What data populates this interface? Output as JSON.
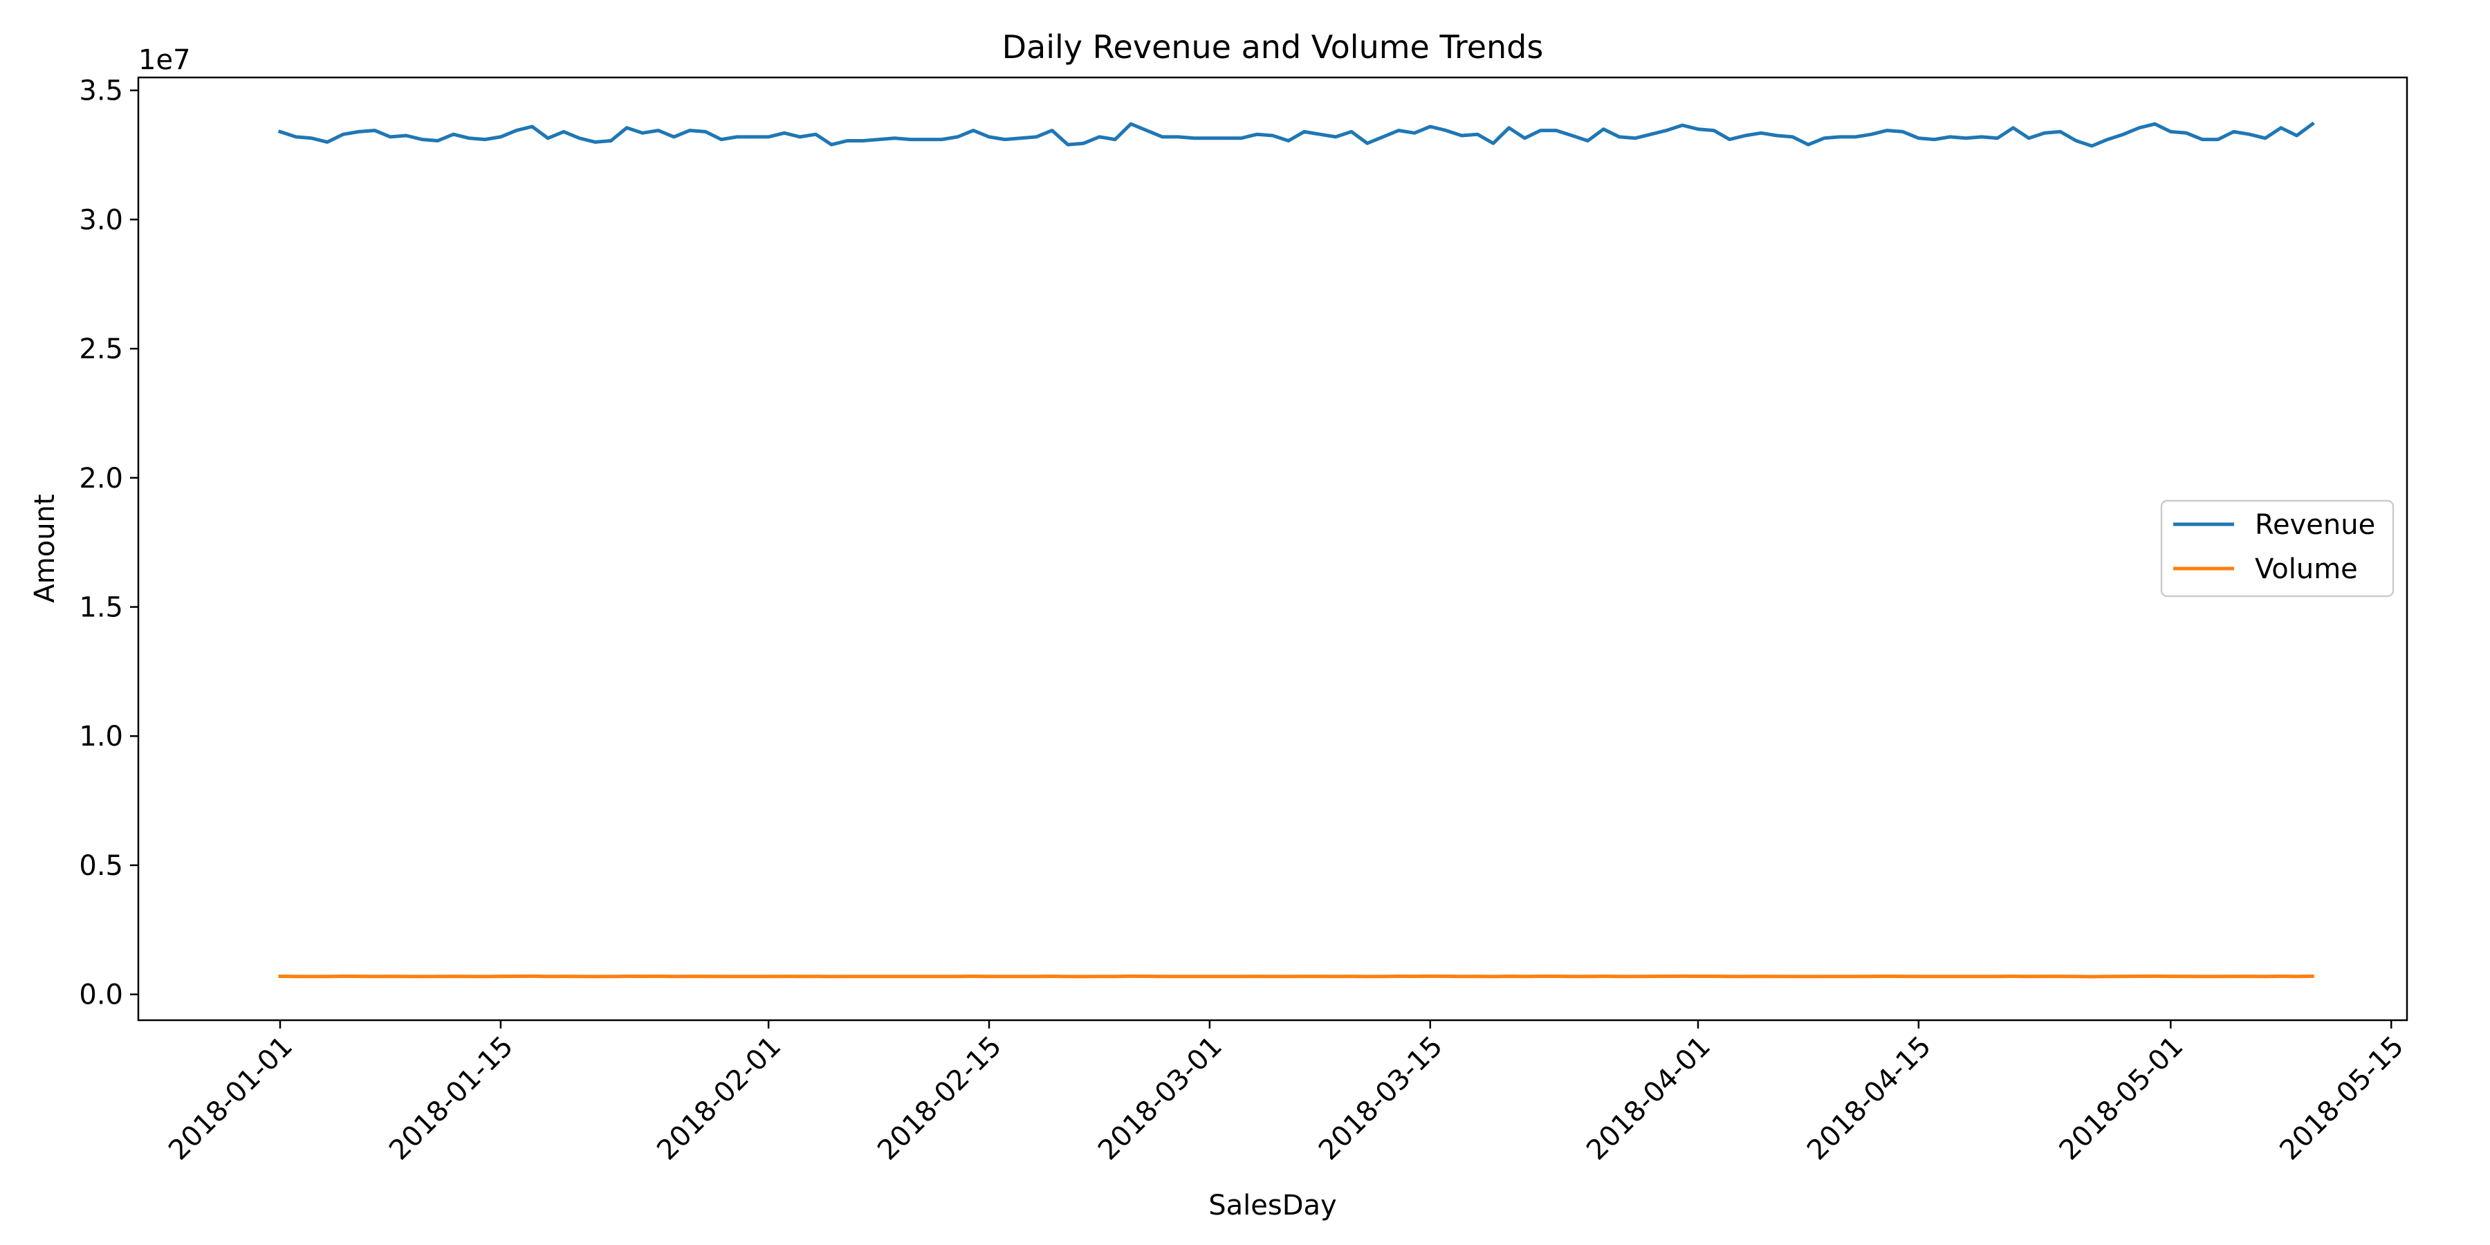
{
  "chart_data": {
    "type": "line",
    "title": "Daily Revenue and Volume Trends",
    "xlabel": "SalesDay",
    "ylabel": "Amount",
    "y_offset_label": "1e7",
    "y_scale": 10000000,
    "x_start": "2018-01-01",
    "xlim": [
      "2017-12-23",
      "2018-05-16"
    ],
    "ylim": [
      -1000000,
      35500000
    ],
    "x_ticks": [
      "2018-01-01",
      "2018-01-15",
      "2018-02-01",
      "2018-02-15",
      "2018-03-01",
      "2018-03-15",
      "2018-04-01",
      "2018-04-15",
      "2018-05-01",
      "2018-05-15"
    ],
    "y_ticks": [
      0,
      5000000,
      10000000,
      15000000,
      20000000,
      25000000,
      30000000,
      35000000
    ],
    "y_tick_labels": [
      "0.0",
      "0.5",
      "1.0",
      "1.5",
      "2.0",
      "2.5",
      "3.0",
      "3.5"
    ],
    "grid": false,
    "legend_position": "center-right",
    "series": [
      {
        "name": "Revenue",
        "color": "#1f77b4",
        "values": [
          33400000,
          33200000,
          33150000,
          33000000,
          33300000,
          33400000,
          33450000,
          33200000,
          33250000,
          33100000,
          33050000,
          33300000,
          33150000,
          33100000,
          33200000,
          33450000,
          33600000,
          33150000,
          33400000,
          33150000,
          33000000,
          33050000,
          33550000,
          33350000,
          33450000,
          33200000,
          33450000,
          33400000,
          33100000,
          33200000,
          33200000,
          33200000,
          33350000,
          33200000,
          33300000,
          32900000,
          33050000,
          33050000,
          33100000,
          33150000,
          33100000,
          33100000,
          33100000,
          33200000,
          33450000,
          33200000,
          33100000,
          33150000,
          33200000,
          33450000,
          32900000,
          32950000,
          33200000,
          33100000,
          33700000,
          33450000,
          33200000,
          33200000,
          33150000,
          33150000,
          33150000,
          33150000,
          33300000,
          33250000,
          33050000,
          33400000,
          33300000,
          33200000,
          33400000,
          32950000,
          33200000,
          33450000,
          33350000,
          33600000,
          33450000,
          33250000,
          33300000,
          32950000,
          33550000,
          33150000,
          33450000,
          33450000,
          33250000,
          33050000,
          33500000,
          33200000,
          33150000,
          33300000,
          33450000,
          33650000,
          33500000,
          33450000,
          33100000,
          33250000,
          33350000,
          33250000,
          33200000,
          32900000,
          33150000,
          33200000,
          33200000,
          33300000,
          33450000,
          33400000,
          33150000,
          33100000,
          33200000,
          33150000,
          33200000,
          33150000,
          33550000,
          33150000,
          33350000,
          33400000,
          33050000,
          32850000,
          33100000,
          33300000,
          33550000,
          33700000,
          33400000,
          33350000,
          33100000,
          33100000,
          33400000,
          33300000,
          33150000,
          33550000,
          33250000,
          33700000
        ]
      },
      {
        "name": "Volume",
        "color": "#ff7f0e",
        "values": [
          700000,
          695000,
          690000,
          695000,
          700000,
          698000,
          692000,
          697000,
          694000,
          690000,
          696000,
          699000,
          693000,
          691000,
          697000,
          700000,
          702000,
          695000,
          698000,
          694000,
          690000,
          693000,
          700000,
          698000,
          701000,
          696000,
          699000,
          697000,
          692000,
          695000,
          696000,
          694000,
          698000,
          695000,
          697000,
          689000,
          692000,
          693000,
          694000,
          695000,
          694000,
          694000,
          694000,
          696000,
          700000,
          695000,
          693000,
          694000,
          696000,
          700000,
          689000,
          690000,
          696000,
          694000,
          703000,
          700000,
          695000,
          695000,
          694000,
          694000,
          694000,
          694000,
          697000,
          696000,
          692000,
          699000,
          697000,
          695000,
          699000,
          690000,
          695000,
          700000,
          698000,
          702000,
          700000,
          696000,
          697000,
          690000,
          701000,
          694000,
          700000,
          700000,
          696000,
          692000,
          700000,
          695000,
          694000,
          697000,
          700000,
          703000,
          701000,
          700000,
          693000,
          696000,
          698000,
          696000,
          695000,
          689000,
          694000,
          695000,
          695000,
          697000,
          700000,
          699000,
          694000,
          693000,
          695000,
          694000,
          695000,
          694000,
          701000,
          694000,
          698000,
          699000,
          692000,
          688000,
          693000,
          697000,
          701000,
          703000,
          699000,
          698000,
          693000,
          693000,
          699000,
          697000,
          694000,
          701000,
          696000,
          703000
        ]
      }
    ]
  }
}
